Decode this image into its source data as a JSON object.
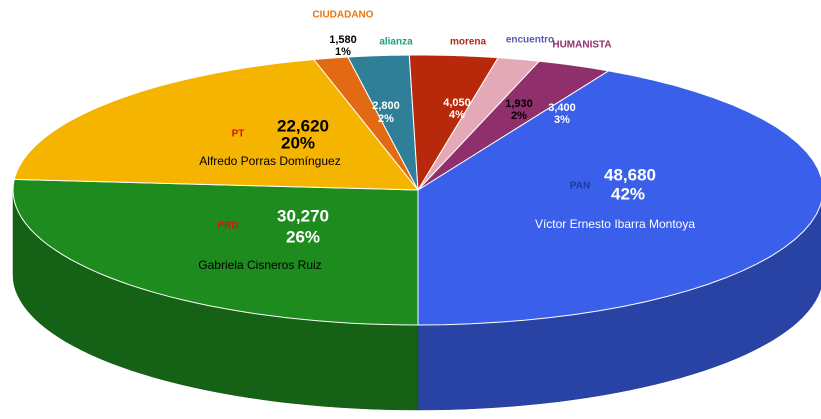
{
  "chart_data": {
    "type": "pie",
    "categories": [
      "Víctor Ernesto Ibarra Montoya",
      "Gabriela Cisneros Ruiz",
      "Alfredo Porras Domínguez",
      null,
      null,
      null,
      null,
      null
    ],
    "values": [
      48680,
      30270,
      22620,
      1580,
      2800,
      4050,
      1930,
      3400
    ],
    "value_labels": [
      "48,680",
      "30,270",
      "22,620",
      "1,580",
      "2,800",
      "4,050",
      "1,930",
      "3,400"
    ],
    "percentages": [
      42,
      26,
      20,
      1,
      2,
      4,
      2,
      3
    ],
    "percentage_labels": [
      "42%",
      "26%",
      "20%",
      "1%",
      "2%",
      "4%",
      "2%",
      "3%"
    ],
    "colors": [
      "#3a5fea",
      "#1e8b1e",
      "#f4b400",
      "#e26a12",
      "#2f7f99",
      "#b8290b",
      "#e4a9b7",
      "#8f2f6c"
    ],
    "logos": [
      "PAN",
      "PRD",
      "PT",
      "CIUDADANO",
      "alianza",
      "morena",
      "encuentro",
      "HUMANISTA"
    ]
  }
}
